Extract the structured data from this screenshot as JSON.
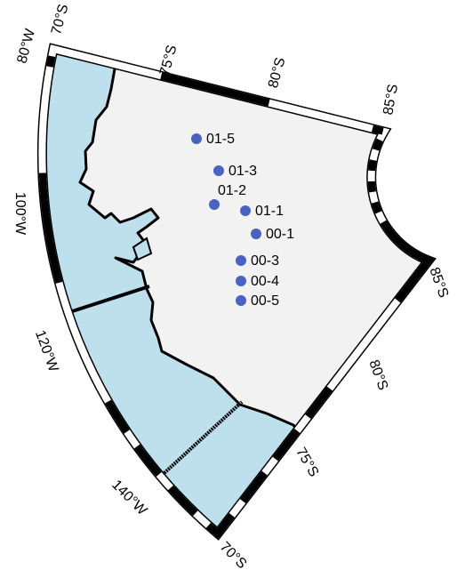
{
  "frame_labels": {
    "top": [
      "70°S",
      "75°S",
      "80°S",
      "85°S"
    ],
    "right": [
      "85°S",
      "80°S",
      "75°S",
      "70°S"
    ],
    "left": [
      "80°W",
      "100°W",
      "120°W",
      "140°W"
    ]
  },
  "stations": [
    "01-5",
    "01-3",
    "01-2",
    "01-1",
    "00-1",
    "00-3",
    "00-4",
    "00-5"
  ]
}
